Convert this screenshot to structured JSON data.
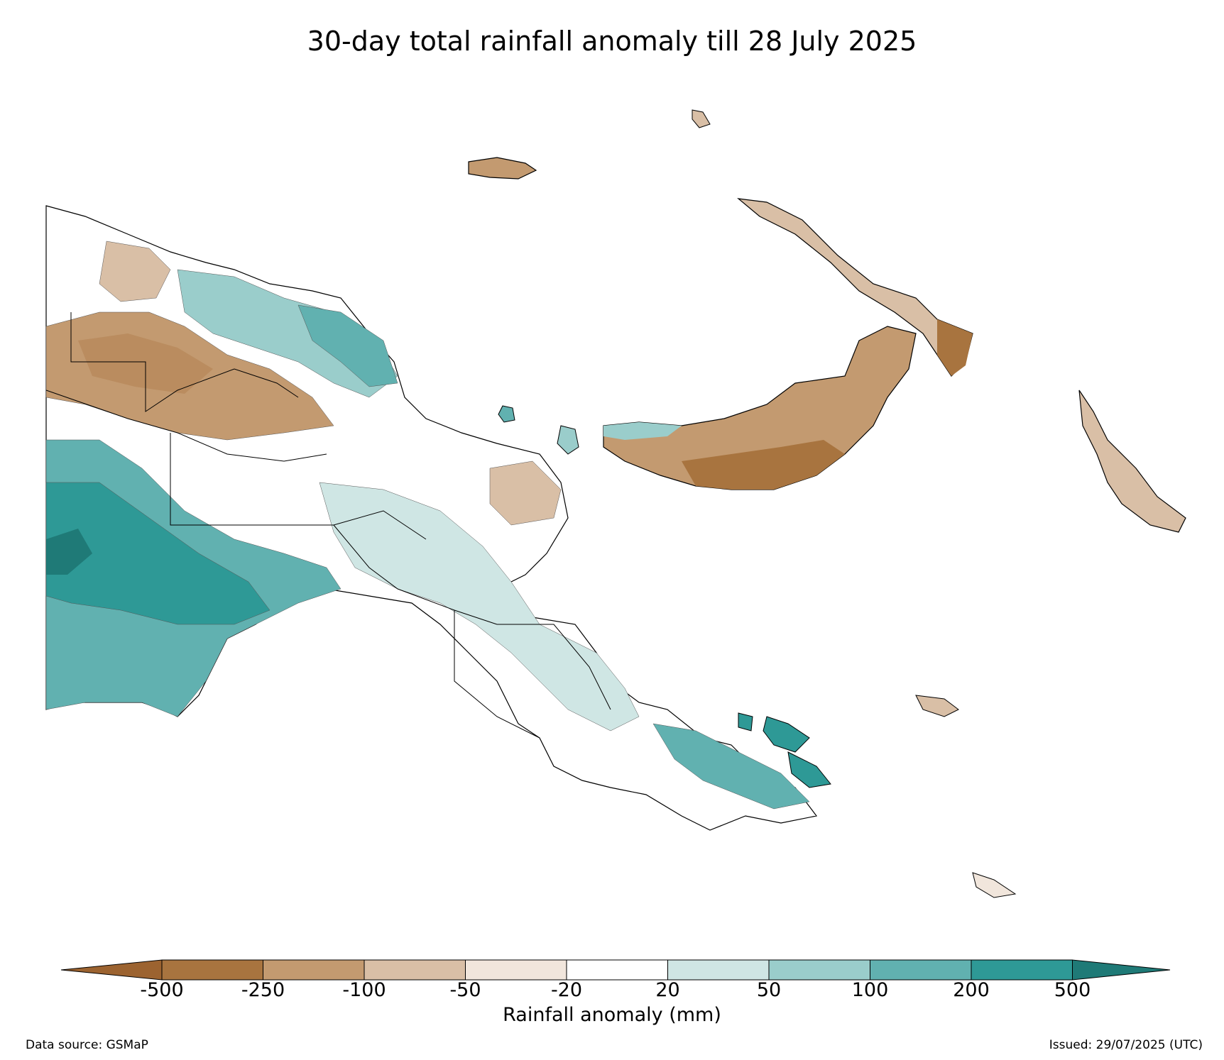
{
  "title": "30-day total rainfall anomaly till 28 July 2025",
  "colorbar": {
    "label": "Rainfall anomaly (mm)",
    "ticks": [
      "-500",
      "-250",
      "-100",
      "-50",
      "-20",
      "20",
      "50",
      "100",
      "200",
      "500"
    ],
    "bins": [
      {
        "range": "< -500",
        "color": "#9c6330"
      },
      {
        "range": "-500 to -250",
        "color": "#a8743f"
      },
      {
        "range": "-250 to -100",
        "color": "#c39a70"
      },
      {
        "range": "-100 to -50",
        "color": "#d9bfa6"
      },
      {
        "range": "-50 to -20",
        "color": "#f1e6dc"
      },
      {
        "range": "-20 to 20",
        "color": "#ffffff"
      },
      {
        "range": "20 to 50",
        "color": "#cfe6e4"
      },
      {
        "range": "50 to 100",
        "color": "#9acdcb"
      },
      {
        "range": "100 to 200",
        "color": "#61b1b0"
      },
      {
        "range": "200 to 500",
        "color": "#2e9996"
      },
      {
        "range": "> 500",
        "color": "#1f7a77"
      }
    ]
  },
  "footer": {
    "source": "Data source: GSMaP",
    "issued": "Issued: 29/07/2025 (UTC)"
  }
}
